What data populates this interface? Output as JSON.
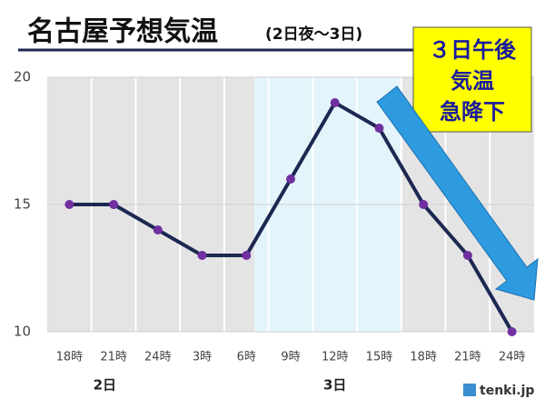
{
  "chart_data": {
    "type": "line",
    "title": "名古屋予想気温",
    "subtitle": "(2日夜～3日)",
    "categories": [
      "18時",
      "21時",
      "24時",
      "3時",
      "6時",
      "9時",
      "12時",
      "15時",
      "18時",
      "21時",
      "24時"
    ],
    "values": [
      15,
      15,
      14,
      13,
      13,
      16,
      19,
      18,
      15,
      13,
      10
    ],
    "line_color": "#1c2752",
    "marker_color": "#7030a0",
    "ylim": [
      10,
      20
    ],
    "yticks": [
      10,
      15,
      20
    ],
    "grid": true,
    "day_labels": [
      "2日",
      "3日"
    ],
    "annotation": [
      "３日午後",
      "気温",
      "急降下"
    ],
    "source": "tenki.jp"
  }
}
